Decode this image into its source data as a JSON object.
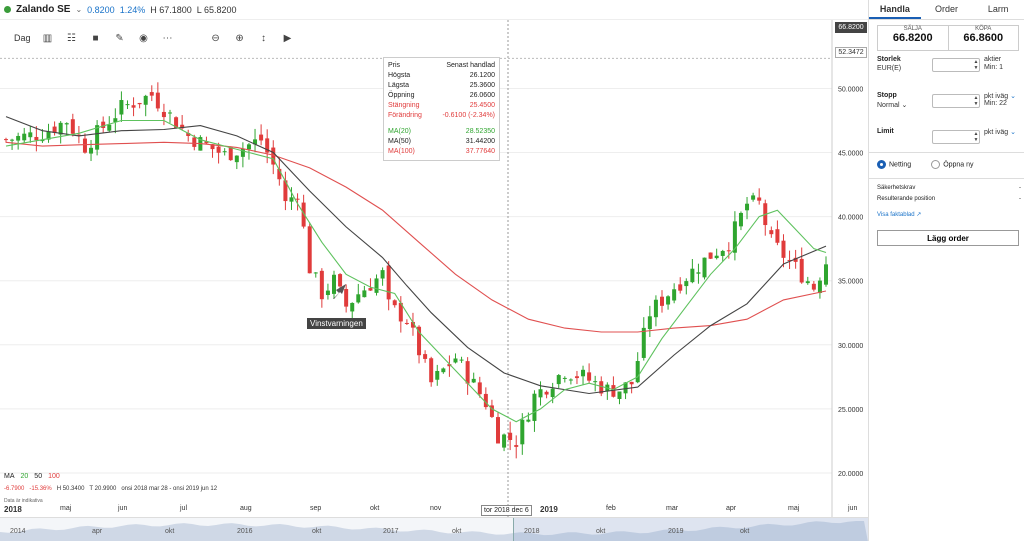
{
  "instrument": {
    "name": "Zalando SE",
    "change": "0.8200",
    "change_pct": "1.24%",
    "high_label": "H 67.1800",
    "low_label": "L 65.8200"
  },
  "toolbar": {
    "period": "Dag"
  },
  "price_tags": {
    "current": "66.8200",
    "level": "52.3472"
  },
  "tooltip": {
    "col1": "Pris",
    "col2": "Senast handlad",
    "rows": [
      {
        "label": "Högsta",
        "value": "26.1200"
      },
      {
        "label": "Lägsta",
        "value": "25.3600"
      },
      {
        "label": "Öppning",
        "value": "26.0600"
      },
      {
        "label": "Stängning",
        "value": "25.4500"
      },
      {
        "label": "Förändring",
        "value": "-0.6100 (-2.34%)"
      }
    ],
    "ma": [
      {
        "label": "MA(20)",
        "value": "28.52350"
      },
      {
        "label": "MA(50)",
        "value": "31.44200"
      },
      {
        "label": "MA(100)",
        "value": "37.77640"
      }
    ]
  },
  "event_label": "Vinstvarningen",
  "ma_legend": {
    "label": "MA",
    "p20": "20",
    "p50": "50",
    "p100": "100"
  },
  "ma_stats": {
    "a": "-6.7900",
    "b": "-15.36%",
    "c": "H 50.3400",
    "d": "T 20.9900",
    "e": "onsi 2018 mar 28 - onsi 2019 jun 12"
  },
  "source_note": "Data är indikativa",
  "xaxis": [
    {
      "label": "2018",
      "year": true
    },
    {
      "label": "maj"
    },
    {
      "label": "jun"
    },
    {
      "label": "jul"
    },
    {
      "label": "aug"
    },
    {
      "label": "sep"
    },
    {
      "label": "okt"
    },
    {
      "label": "nov"
    },
    {
      "label": "2019",
      "year": true
    },
    {
      "label": "feb"
    },
    {
      "label": "mar"
    },
    {
      "label": "apr"
    },
    {
      "label": "maj"
    },
    {
      "label": "jun"
    }
  ],
  "crosshair_date": "tor 2018 dec 6",
  "navigator": [
    "2014",
    "apr",
    "okt",
    "2016",
    "okt",
    "2017",
    "okt",
    "2018",
    "okt",
    "2019",
    "okt"
  ],
  "panel": {
    "tabs": [
      "Handla",
      "Order",
      "Larm"
    ],
    "sell_label": "SÄLJA",
    "sell_value": "66.8200",
    "buy_label": "KÖPA",
    "buy_value": "66.8600",
    "size_label": "Storlek",
    "size_sub": "EUR(E)",
    "size_unit": "aktier",
    "size_min": "Min: 1",
    "stop_label": "Stopp",
    "stop_sub": "Normal",
    "stop_unit": "pkt iväg",
    "stop_min": "Min: 22",
    "limit_label": "Limit",
    "limit_unit": "pkt iväg",
    "netting": "Netting",
    "open_new": "Öppna ny",
    "margin_label": "Säkerhetskrav",
    "margin_value": "-",
    "position_label": "Resulterande position",
    "position_value": "-",
    "factsheet": "Visa faktablad",
    "order_button": "Lägg order"
  },
  "chart_data": {
    "type": "candlestick",
    "ylim": [
      17.5,
      53
    ],
    "yticks": [
      20,
      25,
      30,
      35,
      40,
      45,
      50
    ],
    "colors": {
      "up": "#2fa52f",
      "down": "#e03b3b",
      "ma20": "#5ec25e",
      "ma50": "#444444",
      "ma100": "#e05050"
    },
    "close_path": [
      [
        0,
        46
      ],
      [
        6,
        46.5
      ],
      [
        10,
        47.5
      ],
      [
        13,
        45.5
      ],
      [
        19,
        48.5
      ],
      [
        24,
        49.5
      ],
      [
        30,
        46.3
      ],
      [
        36,
        44.8
      ],
      [
        42,
        46
      ],
      [
        45,
        43
      ],
      [
        46,
        41
      ],
      [
        48,
        42
      ],
      [
        50,
        36
      ],
      [
        52,
        34
      ],
      [
        54,
        35
      ],
      [
        56,
        33
      ],
      [
        58,
        34
      ],
      [
        62,
        35.5
      ],
      [
        63,
        33
      ],
      [
        66,
        32
      ],
      [
        70,
        27
      ],
      [
        74,
        29
      ],
      [
        79,
        25.5
      ],
      [
        81,
        23
      ],
      [
        84,
        22.5
      ],
      [
        87,
        26
      ],
      [
        92,
        28
      ],
      [
        95,
        27.5
      ],
      [
        99,
        26.5
      ],
      [
        101,
        26.5
      ],
      [
        103,
        27
      ],
      [
        106,
        32.5
      ],
      [
        110,
        34.5
      ],
      [
        116,
        37
      ],
      [
        119,
        38
      ],
      [
        122,
        41
      ],
      [
        124,
        41
      ],
      [
        126,
        38
      ],
      [
        130,
        36
      ],
      [
        133,
        34.5
      ],
      [
        135,
        36.5
      ]
    ],
    "ma20": [
      [
        0,
        45.5
      ],
      [
        6,
        46
      ],
      [
        12,
        46.5
      ],
      [
        19,
        47.5
      ],
      [
        26,
        47.5
      ],
      [
        32,
        46
      ],
      [
        36,
        45.5
      ],
      [
        40,
        45
      ],
      [
        44,
        44.5
      ],
      [
        48,
        41
      ],
      [
        52,
        38
      ],
      [
        56,
        35.5
      ],
      [
        60,
        34.5
      ],
      [
        64,
        34
      ],
      [
        68,
        31
      ],
      [
        72,
        29
      ],
      [
        76,
        27
      ],
      [
        80,
        25
      ],
      [
        84,
        24
      ],
      [
        88,
        25
      ],
      [
        92,
        26.5
      ],
      [
        96,
        27
      ],
      [
        100,
        26.5
      ],
      [
        104,
        27.5
      ],
      [
        108,
        30.5
      ],
      [
        112,
        33
      ],
      [
        116,
        35.5
      ],
      [
        120,
        37.5
      ],
      [
        124,
        40
      ],
      [
        127,
        40.5
      ],
      [
        130,
        39
      ],
      [
        133,
        37.5
      ],
      [
        135,
        37.2
      ]
    ],
    "ma50": [
      [
        0,
        47.8
      ],
      [
        6,
        46.7
      ],
      [
        12,
        46.3
      ],
      [
        19,
        46.7
      ],
      [
        26,
        46.8
      ],
      [
        32,
        47.1
      ],
      [
        38,
        46.3
      ],
      [
        44,
        45
      ],
      [
        50,
        42
      ],
      [
        56,
        39.2
      ],
      [
        62,
        36.8
      ],
      [
        66,
        34.6
      ],
      [
        70,
        32.5
      ],
      [
        76,
        29.8
      ],
      [
        82,
        27.8
      ],
      [
        88,
        26.8
      ],
      [
        96,
        26.2
      ],
      [
        104,
        26.7
      ],
      [
        110,
        29.2
      ],
      [
        116,
        31.5
      ],
      [
        122,
        33.2
      ],
      [
        128,
        36.3
      ],
      [
        135,
        37.7
      ]
    ],
    "ma100": [
      [
        0,
        45.8
      ],
      [
        6,
        45.5
      ],
      [
        12,
        45.6
      ],
      [
        19,
        45.7
      ],
      [
        26,
        45.8
      ],
      [
        32,
        45.7
      ],
      [
        38,
        45.4
      ],
      [
        44,
        44.8
      ],
      [
        50,
        43.8
      ],
      [
        56,
        42.3
      ],
      [
        62,
        40.5
      ],
      [
        68,
        38
      ],
      [
        74,
        35.5
      ],
      [
        80,
        33.5
      ],
      [
        86,
        32
      ],
      [
        92,
        31.3
      ],
      [
        98,
        31
      ],
      [
        104,
        31
      ],
      [
        110,
        31.3
      ],
      [
        116,
        31.5
      ],
      [
        122,
        32
      ],
      [
        128,
        33.5
      ],
      [
        135,
        34.2
      ]
    ]
  }
}
